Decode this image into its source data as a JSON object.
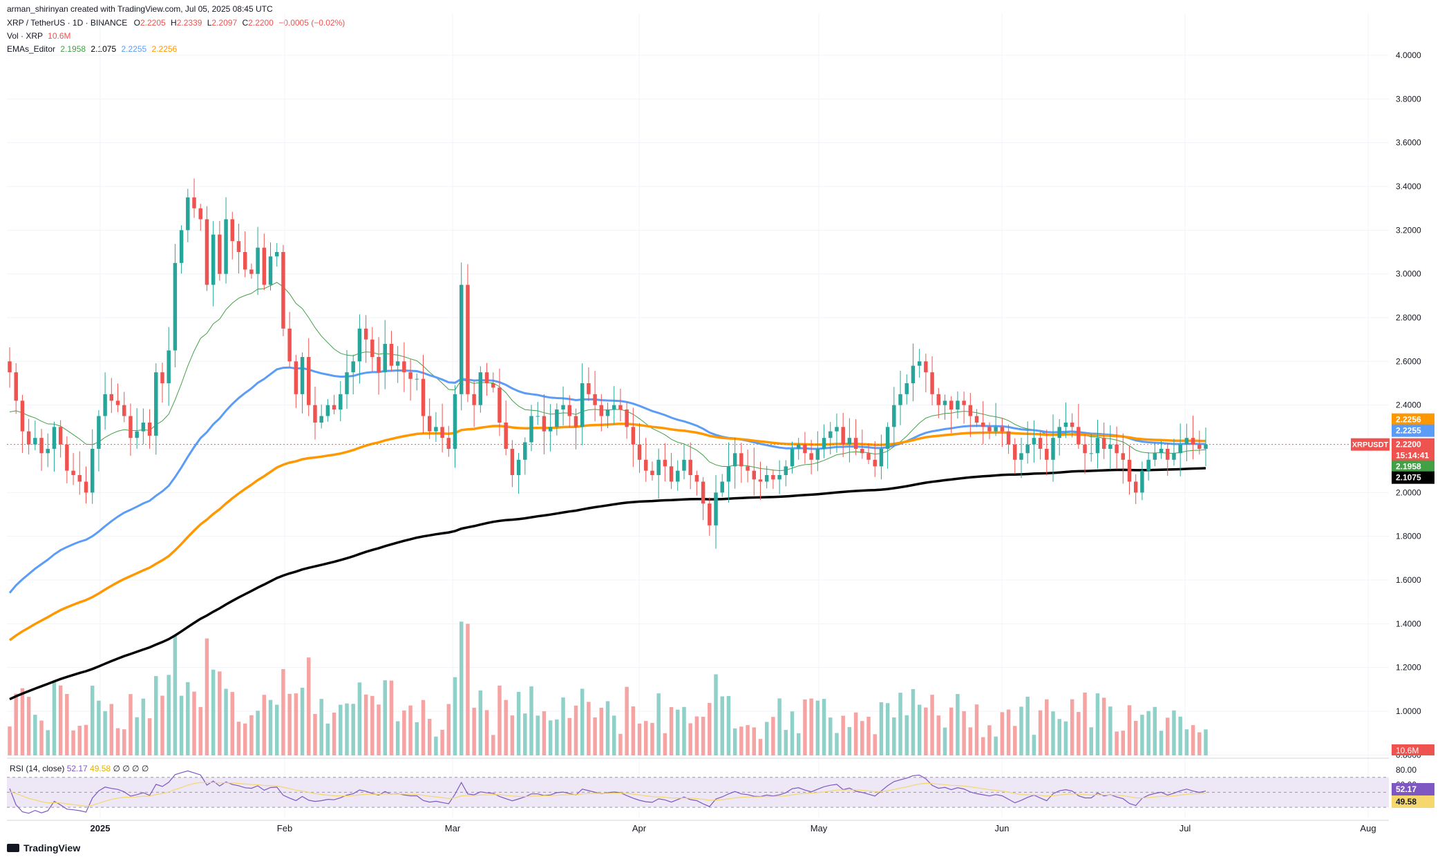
{
  "header": {
    "attribution": "arman_shirinyan created with TradingView.com, Jul 05, 2025 08:45 UTC",
    "symbol_line": "XRP / TetherUS · 1D · BINANCE",
    "ohlc": {
      "o_label": "O",
      "o": "2.2205",
      "h_label": "H",
      "h": "2.2339",
      "l_label": "L",
      "l": "2.2097",
      "c_label": "C",
      "c": "2.2200",
      "change": "−0.0005 (−0.02%)"
    },
    "vol_label": "Vol · XRP",
    "vol_value": "10.6M",
    "ema_label": "EMAs_Editor",
    "ema_values": [
      "2.1958",
      "2.1075",
      "2.2255",
      "2.2256"
    ]
  },
  "colors": {
    "up": "#26a69a",
    "down": "#ef5350",
    "vol_up": "#8fd0c8",
    "vol_down": "#f5a3a3",
    "ema20": "#43a047",
    "ema50": "#5b9cf6",
    "ema100": "#ff9800",
    "ema200": "#000000",
    "rsi": "#7e57c2",
    "rsi_ma": "#f5d76e",
    "rsi_band": "#ede7f6",
    "grid": "#f0f3fa",
    "axis_text": "#131722"
  },
  "chart_data": {
    "type": "candlestick",
    "price_axis": {
      "min": 1.0,
      "max": 4.0,
      "ticks": [
        "4.0000",
        "3.8000",
        "3.6000",
        "3.4000",
        "3.2000",
        "3.0000",
        "2.8000",
        "2.6000",
        "2.4000",
        "2.2000",
        "2.0000",
        "1.8000",
        "1.6000",
        "1.4000",
        "1.2000",
        "1.0000",
        "0.8000"
      ]
    },
    "time_axis": {
      "labels": [
        "2025",
        "Feb",
        "Mar",
        "Apr",
        "May",
        "Jun",
        "Jul",
        "Aug"
      ]
    },
    "price_labels": [
      {
        "text": "2.2256",
        "color": "#ff9800",
        "value": 2.2256
      },
      {
        "text": "2.2255",
        "color": "#5b9cf6",
        "value": 2.2255
      },
      {
        "text": "XRPUSDT",
        "color": "#ef5350",
        "value": 2.22
      },
      {
        "text": "2.2200",
        "color": "#ef5350",
        "value": 2.22
      },
      {
        "text": "15:14:41",
        "color": "#ef5350",
        "value": 2.22
      },
      {
        "text": "2.1958",
        "color": "#43a047",
        "value": 2.1958
      },
      {
        "text": "2.1075",
        "color": "#000000",
        "value": 2.1075
      }
    ],
    "volume_label": {
      "text": "10.6M"
    },
    "rsi": {
      "title": "RSI (14, close)",
      "value": "52.17",
      "ma": "49.58",
      "extra": "∅ ∅ ∅ ∅",
      "axis_ticks": [
        "80.00",
        "60.00"
      ],
      "levels": {
        "upper": 70,
        "mid": 50,
        "lower": 30
      },
      "labels": [
        {
          "text": "52.17",
          "value": 52.17,
          "color": "#7e57c2"
        },
        {
          "text": "49.58",
          "value": 49.58,
          "color": "#f5d76e"
        }
      ]
    },
    "close_series": [
      2.55,
      2.42,
      2.28,
      2.22,
      2.25,
      2.18,
      2.2,
      2.3,
      2.22,
      2.1,
      2.08,
      2.05,
      2.0,
      2.2,
      2.35,
      2.45,
      2.42,
      2.4,
      2.35,
      2.25,
      2.28,
      2.32,
      2.26,
      2.55,
      2.5,
      2.65,
      3.05,
      3.2,
      3.35,
      3.3,
      3.25,
      2.95,
      3.18,
      3.0,
      3.25,
      3.15,
      3.1,
      3.02,
      3.0,
      3.12,
      2.95,
      3.08,
      3.1,
      2.75,
      2.6,
      2.45,
      2.62,
      2.4,
      2.32,
      2.35,
      2.4,
      2.38,
      2.45,
      2.55,
      2.6,
      2.75,
      2.7,
      2.62,
      2.55,
      2.68,
      2.58,
      2.6,
      2.55,
      2.52,
      2.52,
      2.35,
      2.28,
      2.3,
      2.25,
      2.2,
      2.45,
      2.95,
      2.45,
      2.4,
      2.55,
      2.5,
      2.48,
      2.32,
      2.2,
      2.08,
      2.15,
      2.23,
      2.35,
      2.35,
      2.28,
      2.3,
      2.38,
      2.4,
      2.35,
      2.3,
      2.5,
      2.45,
      2.4,
      2.35,
      2.38,
      2.4,
      2.38,
      2.3,
      2.22,
      2.15,
      2.1,
      2.08,
      2.15,
      2.12,
      2.05,
      2.1,
      2.15,
      2.08,
      2.05,
      1.95,
      1.85,
      2.0,
      2.05,
      2.12,
      2.18,
      2.12,
      2.1,
      2.06,
      2.05,
      2.08,
      2.06,
      2.08,
      2.12,
      2.2,
      2.22,
      2.18,
      2.15,
      2.2,
      2.25,
      2.28,
      2.3,
      2.22,
      2.25,
      2.2,
      2.18,
      2.15,
      2.12,
      2.2,
      2.3,
      2.4,
      2.45,
      2.5,
      2.58,
      2.6,
      2.55,
      2.45,
      2.4,
      2.42,
      2.38,
      2.42,
      2.4,
      2.35,
      2.32,
      2.3,
      2.28,
      2.3,
      2.28,
      2.22,
      2.15,
      2.18,
      2.22,
      2.25,
      2.2,
      2.15,
      2.25,
      2.3,
      2.32,
      2.3,
      2.22,
      2.18,
      2.18,
      2.25,
      2.2,
      2.22,
      2.18,
      2.15,
      2.05,
      2.0,
      2.1,
      2.15,
      2.18,
      2.2,
      2.15,
      2.18,
      2.22,
      2.25,
      2.22,
      2.2,
      2.22
    ]
  }
}
